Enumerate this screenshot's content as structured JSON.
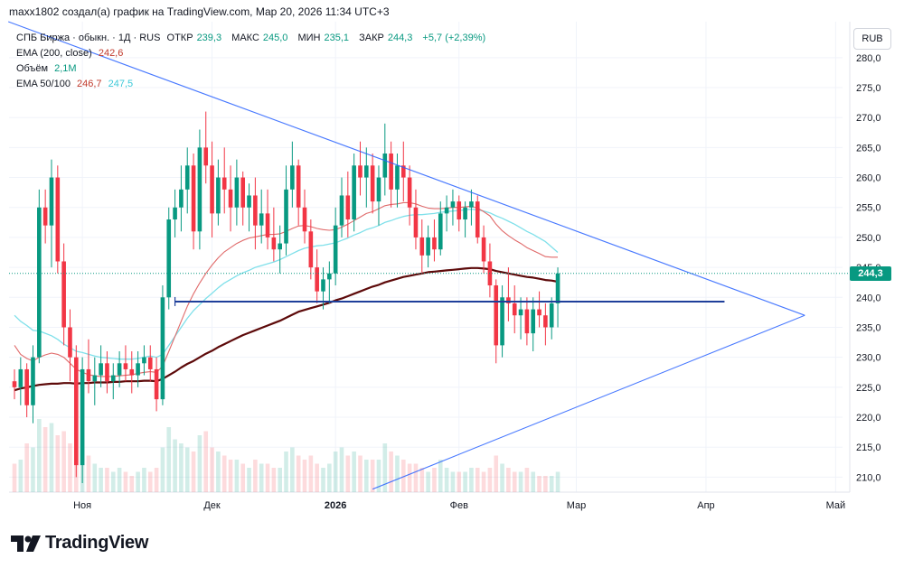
{
  "header": {
    "attribution": "maxx1802 создал(а) график на TradingView.com, Мар 20, 2026 11:34 UTC+3"
  },
  "legend": {
    "symbol": "СПБ Биржа · обыкн. · 1Д · RUS",
    "open_label": "ОТКР",
    "open": "239,3",
    "high_label": "МАКС",
    "high": "245,0",
    "low_label": "МИН",
    "low": "235,1",
    "close_label": "ЗАКР",
    "close": "244,3",
    "change": "+5,7 (+2,39%)",
    "ema200_label": "EMA (200, close)",
    "ema200_value": "242,6",
    "volume_label": "Объём",
    "volume_value": "2,1M",
    "ema50100_label": "EMA 50/100",
    "ema50_value": "246,7",
    "ema100_value": "247,5"
  },
  "currency_button": "RUB",
  "last_price_tag": "244,3",
  "brand": "TradingView",
  "colors": {
    "up": "#089981",
    "down": "#f23645",
    "ema200": "#5d0a0a",
    "ema50": "#e06a6a",
    "ema100": "#7fe0ea",
    "trendline": "#2962ff",
    "support": "#1e3f9a",
    "last_price": "#089981"
  },
  "chart_data": {
    "type": "candlestick",
    "ylim": [
      207.5,
      286
    ],
    "y_ticks": [
      "210,0",
      "215,0",
      "220,0",
      "225,0",
      "230,0",
      "235,0",
      "240,0",
      "245,0",
      "250,0",
      "255,0",
      "260,0",
      "265,0",
      "270,0",
      "275,0",
      "280,0"
    ],
    "x_labels": [
      {
        "label": "Ноя",
        "bar": 11
      },
      {
        "label": "Дек",
        "bar": 32
      },
      {
        "label": "2026",
        "bar": 52
      },
      {
        "label": "Фев",
        "bar": 72
      },
      {
        "label": "Мар",
        "bar": 91
      },
      {
        "label": "Апр",
        "bar": 112
      },
      {
        "label": "Май",
        "bar": 133
      }
    ],
    "candles": [
      [
        226,
        228,
        223,
        225
      ],
      [
        225,
        230,
        222,
        228
      ],
      [
        228,
        229,
        220,
        222
      ],
      [
        222,
        232,
        219,
        230
      ],
      [
        230,
        258,
        229,
        255
      ],
      [
        255,
        258,
        249,
        252
      ],
      [
        252,
        263,
        245,
        260
      ],
      [
        260,
        262,
        244,
        246
      ],
      [
        246,
        249,
        232,
        235
      ],
      [
        235,
        238,
        226,
        230
      ],
      [
        230,
        232,
        210,
        212
      ],
      [
        212,
        230,
        209,
        228
      ],
      [
        228,
        233,
        224,
        226
      ],
      [
        226,
        230,
        222,
        227
      ],
      [
        227,
        232,
        225,
        229
      ],
      [
        229,
        231,
        224,
        226
      ],
      [
        226,
        229,
        223,
        227
      ],
      [
        227,
        231,
        225,
        229
      ],
      [
        229,
        232,
        226,
        228
      ],
      [
        228,
        231,
        224,
        227
      ],
      [
        227,
        231,
        225,
        229
      ],
      [
        229,
        232,
        227,
        230
      ],
      [
        230,
        232,
        226,
        228
      ],
      [
        228,
        230,
        221,
        223
      ],
      [
        223,
        242,
        222,
        240
      ],
      [
        240,
        255,
        238,
        253
      ],
      [
        253,
        258,
        250,
        255
      ],
      [
        255,
        262,
        251,
        258
      ],
      [
        258,
        265,
        254,
        262
      ],
      [
        262,
        264,
        248,
        251
      ],
      [
        251,
        268,
        248,
        265
      ],
      [
        265,
        271,
        259,
        262
      ],
      [
        262,
        266,
        250,
        254
      ],
      [
        254,
        263,
        252,
        260
      ],
      [
        260,
        265,
        254,
        258
      ],
      [
        258,
        262,
        251,
        255
      ],
      [
        255,
        263,
        252,
        260
      ],
      [
        260,
        261,
        252,
        255
      ],
      [
        255,
        259,
        251,
        257
      ],
      [
        257,
        260,
        248,
        252
      ],
      [
        252,
        258,
        249,
        254
      ],
      [
        254,
        258,
        248,
        250
      ],
      [
        250,
        255,
        246,
        248
      ],
      [
        248,
        252,
        244,
        249
      ],
      [
        249,
        262,
        247,
        258
      ],
      [
        258,
        266,
        255,
        262
      ],
      [
        262,
        263,
        252,
        255
      ],
      [
        255,
        258,
        249,
        251
      ],
      [
        251,
        253,
        243,
        245
      ],
      [
        245,
        248,
        239,
        241
      ],
      [
        241,
        245,
        238,
        243
      ],
      [
        243,
        246,
        239,
        244
      ],
      [
        244,
        255,
        242,
        252
      ],
      [
        252,
        260,
        250,
        257
      ],
      [
        257,
        261,
        250,
        253
      ],
      [
        253,
        264,
        251,
        262
      ],
      [
        262,
        266,
        257,
        260
      ],
      [
        260,
        265,
        255,
        262
      ],
      [
        262,
        264,
        254,
        256
      ],
      [
        256,
        262,
        252,
        260
      ],
      [
        260,
        269,
        257,
        264
      ],
      [
        264,
        266,
        255,
        258
      ],
      [
        258,
        264,
        255,
        262
      ],
      [
        262,
        266,
        256,
        260
      ],
      [
        260,
        262,
        252,
        255
      ],
      [
        255,
        258,
        248,
        250
      ],
      [
        250,
        253,
        244,
        247
      ],
      [
        247,
        252,
        245,
        250
      ],
      [
        250,
        253,
        246,
        248
      ],
      [
        248,
        256,
        247,
        254
      ],
      [
        254,
        257,
        251,
        255
      ],
      [
        255,
        258,
        252,
        256
      ],
      [
        256,
        257,
        251,
        253
      ],
      [
        253,
        256,
        250,
        255
      ],
      [
        255,
        258,
        252,
        256
      ],
      [
        256,
        257,
        249,
        250
      ],
      [
        250,
        252,
        244,
        246
      ],
      [
        246,
        249,
        240,
        242
      ],
      [
        242,
        243,
        229,
        232
      ],
      [
        232,
        242,
        230,
        240
      ],
      [
        240,
        245,
        236,
        239
      ],
      [
        239,
        242,
        234,
        237
      ],
      [
        237,
        240,
        233,
        238
      ],
      [
        238,
        240,
        232,
        234
      ],
      [
        234,
        240,
        231,
        238
      ],
      [
        238,
        241,
        235,
        237
      ],
      [
        237,
        239,
        232,
        235
      ],
      [
        235,
        240,
        233,
        239
      ],
      [
        239,
        245,
        235,
        244
      ]
    ],
    "volume": [
      0.35,
      0.4,
      0.6,
      0.55,
      0.9,
      0.8,
      0.85,
      0.7,
      0.75,
      0.6,
      1.0,
      0.7,
      0.45,
      0.35,
      0.3,
      0.3,
      0.25,
      0.3,
      0.25,
      0.2,
      0.25,
      0.3,
      0.25,
      0.3,
      0.55,
      0.8,
      0.65,
      0.6,
      0.55,
      0.5,
      0.7,
      0.75,
      0.55,
      0.5,
      0.45,
      0.4,
      0.4,
      0.35,
      0.3,
      0.4,
      0.35,
      0.35,
      0.3,
      0.3,
      0.5,
      0.55,
      0.45,
      0.4,
      0.45,
      0.35,
      0.3,
      0.35,
      0.5,
      0.55,
      0.45,
      0.5,
      0.45,
      0.4,
      0.4,
      0.4,
      0.6,
      0.5,
      0.45,
      0.4,
      0.35,
      0.35,
      0.3,
      0.25,
      0.3,
      0.4,
      0.3,
      0.25,
      0.25,
      0.25,
      0.3,
      0.3,
      0.25,
      0.3,
      0.45,
      0.35,
      0.3,
      0.25,
      0.25,
      0.3,
      0.25,
      0.2,
      0.2,
      0.2,
      0.25
    ],
    "ema200": [
      224.5,
      224.8,
      225.0,
      225.2,
      225.4,
      225.5,
      225.6,
      225.6,
      225.7,
      225.7,
      225.6,
      225.7,
      225.7,
      225.8,
      225.8,
      225.8,
      225.9,
      225.9,
      226.0,
      226.0,
      226.0,
      226.1,
      226.1,
      226.0,
      226.4,
      227.0,
      227.6,
      228.3,
      228.9,
      229.4,
      230.0,
      230.6,
      231.1,
      231.7,
      232.2,
      232.7,
      233.2,
      233.7,
      234.1,
      234.5,
      234.9,
      235.3,
      235.7,
      236.1,
      236.6,
      237.1,
      237.6,
      237.9,
      238.2,
      238.5,
      238.8,
      239.1,
      239.5,
      239.8,
      240.2,
      240.6,
      241.0,
      241.4,
      241.8,
      242.1,
      242.5,
      242.8,
      243.1,
      243.4,
      243.6,
      243.8,
      244.0,
      244.2,
      244.3,
      244.4,
      244.5,
      244.6,
      244.7,
      244.8,
      244.9,
      244.9,
      244.8,
      244.7,
      244.4,
      244.2,
      244.0,
      243.8,
      243.6,
      243.4,
      243.3,
      243.1,
      242.9,
      242.8,
      242.6
    ],
    "ema100": [
      237.0,
      236.0,
      235.3,
      234.5,
      234.4,
      234.0,
      233.6,
      233.0,
      232.2,
      231.6,
      231.0,
      230.8,
      230.5,
      230.2,
      230.0,
      229.9,
      229.8,
      229.7,
      229.7,
      229.7,
      229.8,
      230.0,
      230.2,
      230.0,
      230.5,
      232.0,
      233.5,
      235.0,
      236.5,
      237.8,
      238.8,
      239.8,
      240.7,
      241.6,
      242.4,
      243.0,
      243.6,
      244.1,
      244.5,
      245.0,
      245.3,
      245.6,
      245.9,
      246.3,
      246.8,
      247.3,
      247.8,
      248.2,
      248.4,
      248.6,
      248.7,
      248.9,
      249.1,
      249.5,
      249.9,
      250.4,
      250.8,
      251.3,
      251.6,
      252.0,
      252.5,
      252.8,
      253.2,
      253.5,
      253.7,
      253.8,
      253.8,
      253.9,
      254.0,
      254.2,
      254.3,
      254.4,
      254.5,
      254.6,
      254.7,
      254.6,
      254.4,
      254.1,
      253.6,
      253.2,
      252.7,
      252.2,
      251.6,
      251.0,
      250.5,
      249.9,
      249.3,
      248.4,
      247.5
    ],
    "ema50": [
      232.0,
      230.5,
      229.8,
      229.4,
      230.0,
      230.4,
      230.7,
      230.5,
      230.0,
      229.0,
      228.0,
      227.5,
      227.1,
      226.9,
      226.8,
      226.8,
      226.8,
      226.9,
      227.0,
      227.1,
      227.3,
      227.5,
      227.6,
      227.5,
      228.5,
      231.0,
      233.5,
      236.0,
      238.5,
      240.6,
      242.4,
      244.0,
      245.4,
      246.6,
      247.6,
      248.3,
      249.0,
      249.5,
      249.9,
      250.1,
      250.3,
      250.5,
      250.5,
      250.6,
      251.0,
      251.5,
      251.9,
      252.0,
      251.8,
      251.5,
      251.3,
      251.2,
      251.3,
      251.7,
      252.2,
      252.8,
      253.4,
      254.0,
      254.3,
      254.8,
      255.3,
      255.5,
      255.6,
      255.8,
      255.8,
      255.6,
      255.2,
      254.9,
      254.8,
      254.8,
      254.9,
      255.0,
      255.0,
      255.1,
      255.2,
      254.9,
      254.3,
      253.6,
      252.2,
      251.1,
      250.3,
      249.6,
      249.0,
      248.3,
      247.8,
      247.3,
      246.8,
      246.7,
      246.7
    ],
    "trend_upper": {
      "from": {
        "bar": -1,
        "price": 286
      },
      "to": {
        "bar": 128,
        "price": 237
      }
    },
    "trend_lower": {
      "from": {
        "bar": 58,
        "price": 208
      },
      "to": {
        "bar": 128,
        "price": 237
      }
    },
    "support_level": {
      "price": 239.3,
      "from_bar": 26,
      "to_bar": 115
    }
  }
}
